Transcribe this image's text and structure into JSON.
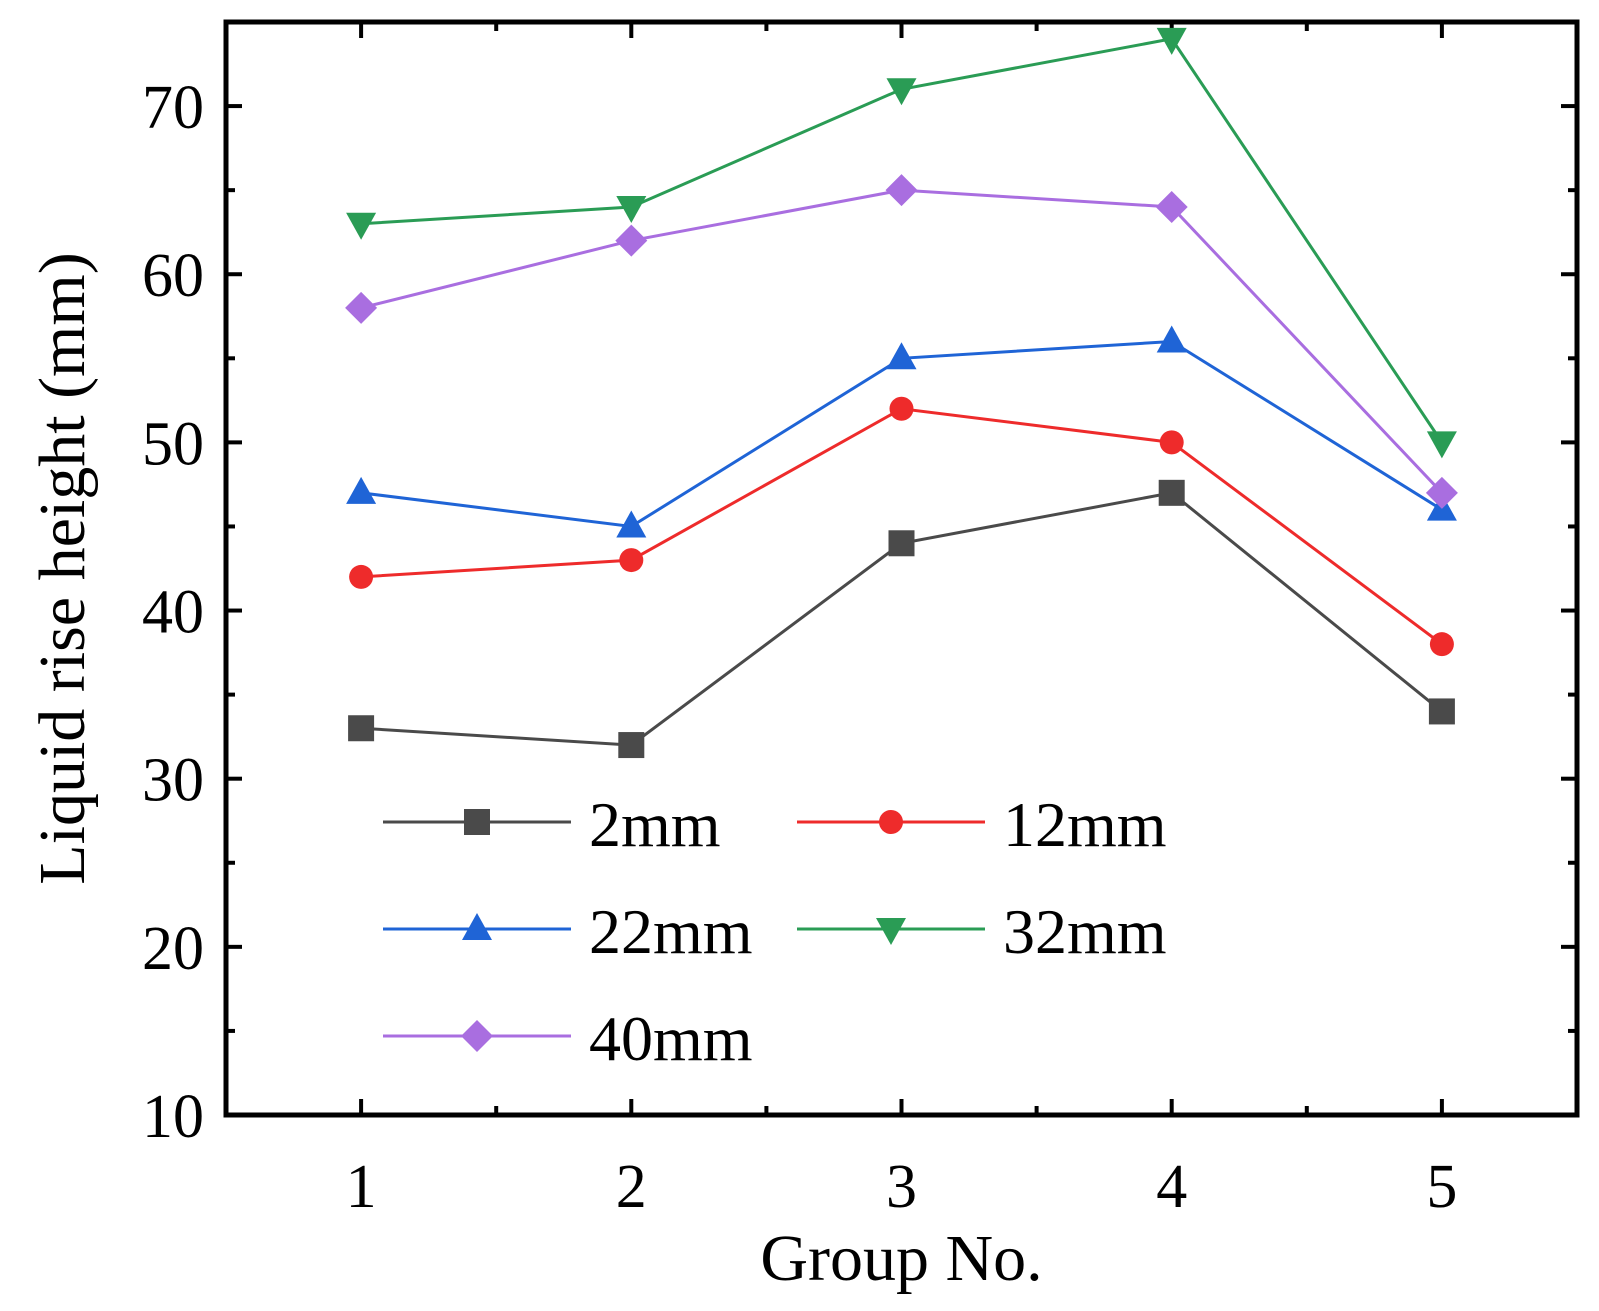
{
  "chart_data": {
    "type": "line",
    "title": "",
    "xlabel": "Group No.",
    "ylabel": "Liquid rise height (mm)",
    "x": [
      1,
      2,
      3,
      4,
      5
    ],
    "xlim": [
      0.5,
      5.5
    ],
    "ylim": [
      10,
      75
    ],
    "xticks": [
      1,
      2,
      3,
      4,
      5
    ],
    "yticks": [
      10,
      20,
      30,
      40,
      50,
      60,
      70
    ],
    "legend_position": "bottom-left",
    "grid": false,
    "series": [
      {
        "name": "2mm",
        "marker": "square",
        "color": "#4a4a4a",
        "values": [
          33,
          32,
          44,
          47,
          34
        ]
      },
      {
        "name": "12mm",
        "marker": "circle",
        "color": "#ee2b2b",
        "values": [
          42,
          43,
          52,
          50,
          38
        ]
      },
      {
        "name": "22mm",
        "marker": "triangle-up",
        "color": "#1f64d6",
        "values": [
          47,
          45,
          55,
          56,
          46
        ]
      },
      {
        "name": "32mm",
        "marker": "triangle-down",
        "color": "#2a9c55",
        "values": [
          63,
          64,
          71,
          74,
          50
        ]
      },
      {
        "name": "40mm",
        "marker": "diamond",
        "color": "#a96ee0",
        "values": [
          58,
          62,
          65,
          64,
          47
        ]
      }
    ]
  }
}
